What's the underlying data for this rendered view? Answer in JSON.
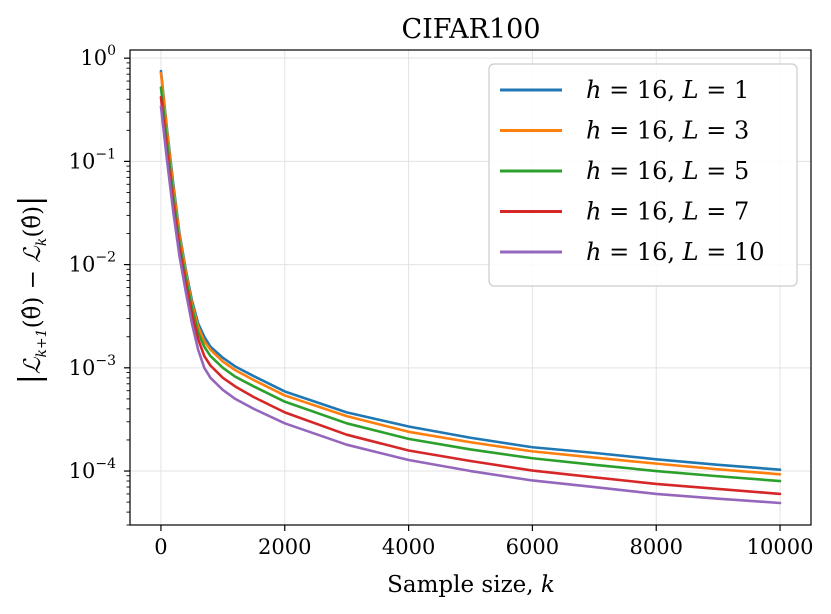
{
  "chart_data": {
    "type": "line",
    "title": "CIFAR100",
    "xlabel": "Sample size, k",
    "ylabel": "|ℒ_{k+1}(θ̂) − ℒ_k(θ̂)|",
    "x_scale": "linear",
    "y_scale": "log",
    "xlim": [
      -500,
      10500
    ],
    "ylim": [
      3e-05,
      1.2
    ],
    "x_ticks": [
      0,
      2000,
      4000,
      6000,
      8000,
      10000
    ],
    "x_tick_labels": [
      "0",
      "2000",
      "4000",
      "6000",
      "8000",
      "10000"
    ],
    "y_ticks": [
      1,
      0.1,
      0.01,
      0.001,
      0.0001
    ],
    "y_tick_labels": [
      {
        "base": "10",
        "exp": "0"
      },
      {
        "base": "10",
        "exp": "−1"
      },
      {
        "base": "10",
        "exp": "−2"
      },
      {
        "base": "10",
        "exp": "−3"
      },
      {
        "base": "10",
        "exp": "−4"
      }
    ],
    "grid": true,
    "legend_position": "top-right",
    "series": [
      {
        "name": "h = 16, L = 1",
        "name_parts": {
          "h": "16",
          "L": "1"
        },
        "color": "#1f77b4",
        "x": [
          0,
          100,
          200,
          300,
          400,
          500,
          600,
          700,
          800,
          1000,
          1200,
          1500,
          2000,
          3000,
          4000,
          5000,
          6000,
          7000,
          8000,
          9000,
          10000
        ],
        "y": [
          0.75,
          0.2,
          0.06,
          0.02,
          0.009,
          0.0045,
          0.0027,
          0.002,
          0.0016,
          0.00125,
          0.00103,
          0.00083,
          0.00059,
          0.00037,
          0.00027,
          0.00021,
          0.00017,
          0.00015,
          0.00013,
          0.000115,
          0.000103
        ]
      },
      {
        "name": "h = 16, L = 3",
        "name_parts": {
          "h": "16",
          "L": "3"
        },
        "color": "#ff7f0e",
        "x": [
          0,
          100,
          200,
          300,
          400,
          500,
          600,
          700,
          800,
          1000,
          1200,
          1500,
          2000,
          3000,
          4000,
          5000,
          6000,
          7000,
          8000,
          9000,
          10000
        ],
        "y": [
          0.72,
          0.19,
          0.055,
          0.019,
          0.0085,
          0.0042,
          0.0025,
          0.0018,
          0.0015,
          0.00115,
          0.00095,
          0.00076,
          0.00054,
          0.00034,
          0.00024,
          0.00019,
          0.000155,
          0.000135,
          0.000118,
          0.000104,
          9.3e-05
        ]
      },
      {
        "name": "h = 16, L = 5",
        "name_parts": {
          "h": "16",
          "L": "5"
        },
        "color": "#2ca02c",
        "x": [
          0,
          100,
          200,
          300,
          400,
          500,
          600,
          700,
          800,
          1000,
          1200,
          1500,
          2000,
          3000,
          4000,
          5000,
          6000,
          7000,
          8000,
          9000,
          10000
        ],
        "y": [
          0.52,
          0.15,
          0.045,
          0.016,
          0.0075,
          0.0038,
          0.0022,
          0.0016,
          0.0013,
          0.001,
          0.00082,
          0.00066,
          0.00047,
          0.00029,
          0.000205,
          0.000162,
          0.000133,
          0.000115,
          0.0001,
          8.9e-05,
          8e-05
        ]
      },
      {
        "name": "h = 16, L = 7",
        "name_parts": {
          "h": "16",
          "L": "7"
        },
        "color": "#d62728",
        "x": [
          0,
          100,
          200,
          300,
          400,
          500,
          600,
          700,
          800,
          1000,
          1200,
          1500,
          2000,
          3000,
          4000,
          5000,
          6000,
          7000,
          8000,
          9000,
          10000
        ],
        "y": [
          0.42,
          0.12,
          0.038,
          0.014,
          0.0065,
          0.0033,
          0.0019,
          0.0013,
          0.00105,
          0.0008,
          0.00066,
          0.00052,
          0.00037,
          0.000225,
          0.000158,
          0.000125,
          0.000101,
          8.7e-05,
          7.5e-05,
          6.7e-05,
          6e-05
        ]
      },
      {
        "name": "h = 16, L = 10",
        "name_parts": {
          "h": "16",
          "L": "10"
        },
        "color": "#9467bd",
        "x": [
          0,
          100,
          200,
          300,
          400,
          500,
          600,
          700,
          800,
          1000,
          1200,
          1500,
          2000,
          3000,
          4000,
          5000,
          6000,
          7000,
          8000,
          9000,
          10000
        ],
        "y": [
          0.34,
          0.1,
          0.032,
          0.012,
          0.0055,
          0.0027,
          0.0015,
          0.001,
          0.0008,
          0.00061,
          0.0005,
          0.0004,
          0.00029,
          0.00018,
          0.000128,
          0.0001,
          8.1e-05,
          7e-05,
          6e-05,
          5.4e-05,
          4.9e-05
        ]
      }
    ]
  }
}
